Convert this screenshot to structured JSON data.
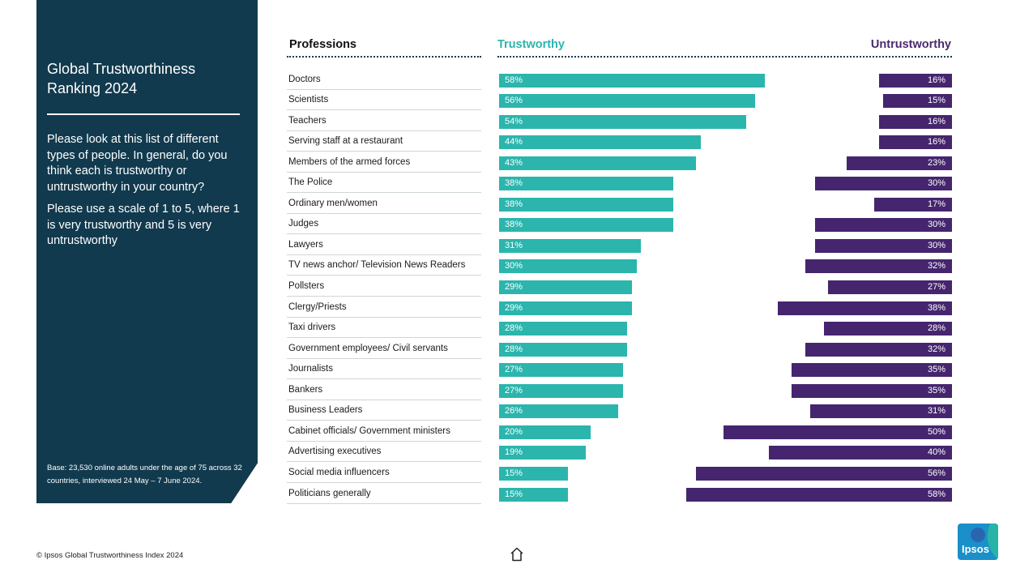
{
  "panel": {
    "title": "Global Trustworthiness Ranking 2024",
    "question1": "Please look at this list of different types of people. In general, do you think each is trustworthy or untrustworthy in your country?",
    "question2": "Please use a scale of 1 to 5, where 1 is very trustworthy and 5 is very untrustworthy",
    "base": "Base: 23,530 online adults under the age of 75 across 32 countries, interviewed 24 May – 7 June 2024."
  },
  "footer": {
    "copyright": "© Ipsos Global Trustworthiness Index 2024",
    "logo_text": "Ipsos"
  },
  "colors": {
    "panel": "#113a4e",
    "trustworthy": "#2bb5ad",
    "untrustworthy": "#45256e",
    "logo": "#1b8fc9"
  },
  "icons": {
    "home": "home-icon"
  },
  "chart_data": {
    "type": "bar",
    "column_headers": {
      "category": "Professions",
      "left": "Trustworthy",
      "right": "Untrustworthy"
    },
    "categories": [
      "Doctors",
      "Scientists",
      "Teachers",
      "Serving staff at a restaurant",
      "Members of the armed forces",
      "The Police",
      "Ordinary men/women",
      "Judges",
      "Lawyers",
      "TV news anchor/ Television News Readers",
      "Pollsters",
      "Clergy/Priests",
      "Taxi drivers",
      "Government employees/ Civil servants",
      "Journalists",
      "Bankers",
      "Business Leaders",
      "Cabinet officials/ Government ministers",
      "Advertising executives",
      "Social media influencers",
      "Politicians generally"
    ],
    "series": [
      {
        "name": "Trustworthy",
        "values": [
          58,
          56,
          54,
          44,
          43,
          38,
          38,
          38,
          31,
          30,
          29,
          29,
          28,
          28,
          27,
          27,
          26,
          20,
          19,
          15,
          15
        ]
      },
      {
        "name": "Untrustworthy",
        "values": [
          16,
          15,
          16,
          16,
          23,
          30,
          17,
          30,
          30,
          32,
          27,
          38,
          28,
          32,
          35,
          35,
          31,
          50,
          40,
          56,
          58
        ]
      }
    ],
    "unit": "%"
  }
}
